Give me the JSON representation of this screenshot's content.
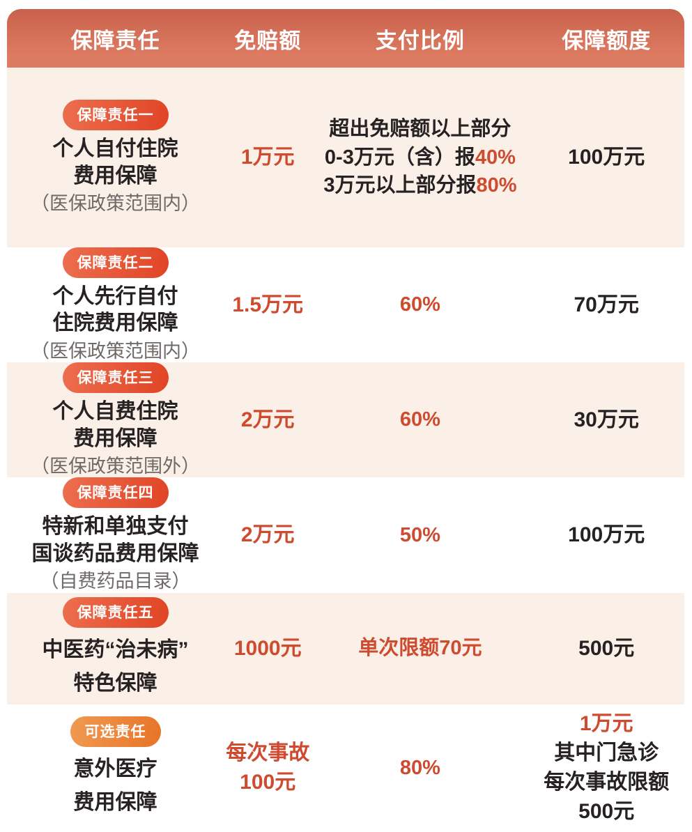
{
  "colors": {
    "header_top": "#c9624c",
    "header_bottom": "#dd7a62",
    "row_shade": "#fbf0e7",
    "red": "#ce4b30",
    "dark": "#262122",
    "gray": "#6f6a68",
    "badge_red_start": "#ec6f4f",
    "badge_red_end": "#e04425",
    "badge_orange_start": "#f09a52",
    "badge_orange_end": "#e77428"
  },
  "header": {
    "columns": [
      "保障责任",
      "免赔额",
      "支付比例",
      "保障额度"
    ]
  },
  "rows": [
    {
      "badge": {
        "label": "保障责任一",
        "style": "red"
      },
      "title_lines": [
        "个人自付住院",
        "费用保障"
      ],
      "subtitle": "（医保政策范围内）",
      "deductible_lines": [
        "1万元"
      ],
      "ratio_lines": [
        [
          {
            "t": "超出免赔额以上部分",
            "c": "dark"
          }
        ],
        [
          {
            "t": "0-3万元（含）报",
            "c": "dark"
          },
          {
            "t": "40%",
            "c": "red"
          }
        ],
        [
          {
            "t": "3万元以上部分报",
            "c": "dark"
          },
          {
            "t": "80%",
            "c": "red"
          }
        ]
      ],
      "coverage_lines": [
        [
          {
            "t": "100万元",
            "c": "dark"
          }
        ]
      ],
      "shaded": true
    },
    {
      "badge": {
        "label": "保障责任二",
        "style": "red"
      },
      "title_lines": [
        "个人先行自付",
        "住院费用保障"
      ],
      "subtitle": "（医保政策范围内）",
      "deductible_lines": [
        "1.5万元"
      ],
      "ratio_lines": [
        [
          {
            "t": "60%",
            "c": "red"
          }
        ]
      ],
      "coverage_lines": [
        [
          {
            "t": "70万元",
            "c": "dark"
          }
        ]
      ],
      "shaded": false
    },
    {
      "badge": {
        "label": "保障责任三",
        "style": "red"
      },
      "title_lines": [
        "个人自费住院",
        "费用保障"
      ],
      "subtitle": "（医保政策范围外）",
      "deductible_lines": [
        "2万元"
      ],
      "ratio_lines": [
        [
          {
            "t": "60%",
            "c": "red"
          }
        ]
      ],
      "coverage_lines": [
        [
          {
            "t": "30万元",
            "c": "dark"
          }
        ]
      ],
      "shaded": true
    },
    {
      "badge": {
        "label": "保障责任四",
        "style": "red"
      },
      "title_lines": [
        "特新和单独支付",
        "国谈药品费用保障"
      ],
      "subtitle": "（自费药品目录）",
      "deductible_lines": [
        "2万元"
      ],
      "ratio_lines": [
        [
          {
            "t": "50%",
            "c": "red"
          }
        ]
      ],
      "coverage_lines": [
        [
          {
            "t": "100万元",
            "c": "dark"
          }
        ]
      ],
      "shaded": false
    },
    {
      "badge": {
        "label": "保障责任五",
        "style": "red"
      },
      "title_lines": [
        "中医药“治未病”",
        "特色保障"
      ],
      "subtitle": "",
      "deductible_lines": [
        "1000元"
      ],
      "ratio_lines": [
        [
          {
            "t": "单次限额70元",
            "c": "red"
          }
        ]
      ],
      "coverage_lines": [
        [
          {
            "t": "500元",
            "c": "dark"
          }
        ]
      ],
      "shaded": true
    },
    {
      "badge": {
        "label": "可选责任",
        "style": "orange"
      },
      "title_lines": [
        "意外医疗",
        "费用保障"
      ],
      "subtitle": "",
      "deductible_lines": [
        "每次事故",
        "100元"
      ],
      "ratio_lines": [
        [
          {
            "t": "80%",
            "c": "red"
          }
        ]
      ],
      "coverage_lines": [
        [
          {
            "t": "1万元",
            "c": "red"
          }
        ],
        [
          {
            "t": "其中门急诊",
            "c": "dark"
          }
        ],
        [
          {
            "t": "每次事故限额",
            "c": "dark"
          }
        ],
        [
          {
            "t": "500元",
            "c": "dark"
          }
        ]
      ],
      "shaded": false
    }
  ]
}
